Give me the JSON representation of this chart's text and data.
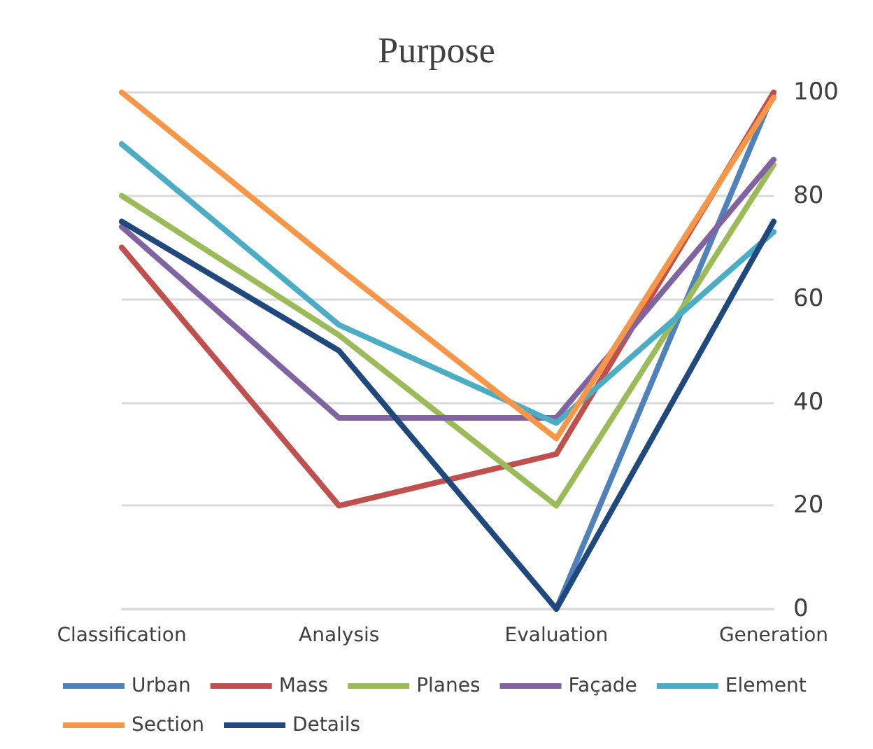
{
  "chart_data": {
    "type": "line",
    "title": "Purpose",
    "categories": [
      "Classification",
      "Analysis",
      "Evaluation",
      "Generation"
    ],
    "series": [
      {
        "name": "Urban",
        "color": "#4f81bd",
        "values": [
          null,
          null,
          0,
          100
        ]
      },
      {
        "name": "Mass",
        "color": "#c0504d",
        "values": [
          70,
          20,
          30,
          100
        ]
      },
      {
        "name": "Planes",
        "color": "#9bbb59",
        "values": [
          80,
          53,
          20,
          86
        ]
      },
      {
        "name": "Façade",
        "color": "#8064a2",
        "values": [
          74,
          37,
          37,
          87
        ]
      },
      {
        "name": "Element",
        "color": "#4bacc6",
        "values": [
          90,
          55,
          36,
          73
        ]
      },
      {
        "name": "Section",
        "color": "#f79646",
        "values": [
          100,
          66,
          33,
          99
        ]
      },
      {
        "name": "Details",
        "color": "#1f497d",
        "values": [
          75,
          50,
          0,
          75
        ]
      }
    ],
    "ylim": [
      0,
      100
    ],
    "yticks": [
      0,
      20,
      40,
      60,
      80,
      100
    ],
    "grid": "y",
    "legend": "bottom",
    "marker": "none",
    "line_style": "solid"
  }
}
